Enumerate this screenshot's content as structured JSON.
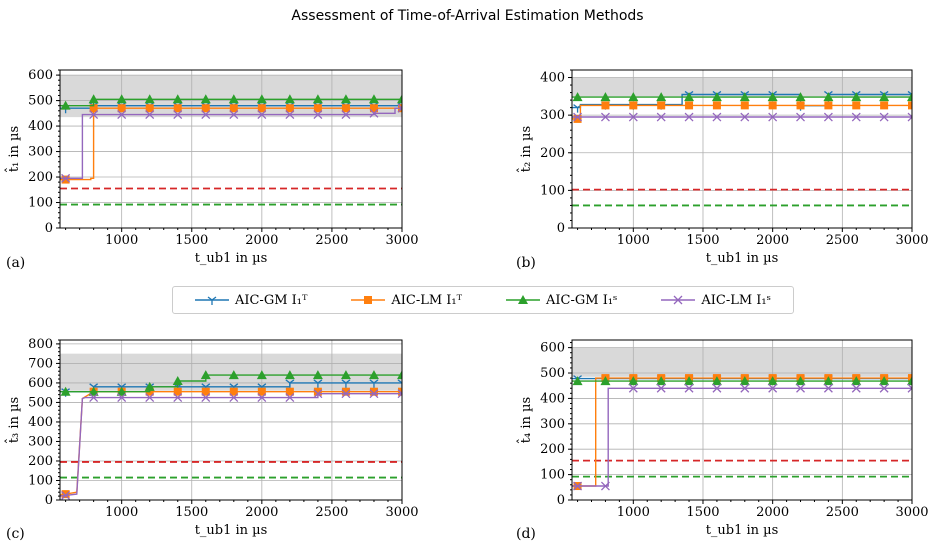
{
  "title": "Assessment of Time-of-Arrival Estimation Methods",
  "legend": [
    {
      "label": "AIC-GM I₁ᵀ",
      "color": "#1f77b4",
      "marker": "tri_down"
    },
    {
      "label": "AIC-LM I₁ᵀ",
      "color": "#ff7f0e",
      "marker": "square"
    },
    {
      "label": "AIC-GM I₁ˢ",
      "color": "#2ca02c",
      "marker": "triangle"
    },
    {
      "label": "AIC-LM I₁ˢ",
      "color": "#9467bd",
      "marker": "x"
    }
  ],
  "chart_data": [
    {
      "type": "line",
      "panel": "(a)",
      "xlabel": "t_ub1 in µs",
      "ylabel": "t̂₁ in µs",
      "xlim": [
        560,
        3000
      ],
      "ylim": [
        0,
        620
      ],
      "xticks": [
        1000,
        1500,
        2000,
        2500,
        3000
      ],
      "yticks": [
        0,
        100,
        200,
        300,
        400,
        500,
        600
      ],
      "shaded_band": [
        435,
        600
      ],
      "hlines": [
        {
          "y": 155,
          "color": "#d62728"
        },
        {
          "y": 92,
          "color": "#2ca02c"
        }
      ],
      "series": [
        {
          "name": "AIC-GM I₁ᵀ",
          "x": [
            560,
            800,
            800,
            3000
          ],
          "y": [
            470,
            470,
            480,
            480
          ]
        },
        {
          "name": "AIC-LM I₁ᵀ",
          "x": [
            560,
            780,
            780,
            800,
            800,
            3000
          ],
          "y": [
            190,
            190,
            195,
            195,
            470,
            470
          ]
        },
        {
          "name": "AIC-GM I₁ˢ",
          "x": [
            560,
            800,
            800,
            3000
          ],
          "y": [
            480,
            480,
            505,
            505
          ]
        },
        {
          "name": "AIC-LM I₁ˢ",
          "x": [
            560,
            720,
            720,
            2800,
            2800,
            2950,
            2950,
            3000
          ],
          "y": [
            195,
            195,
            445,
            445,
            450,
            450,
            470,
            470
          ]
        }
      ]
    },
    {
      "type": "line",
      "panel": "(b)",
      "xlabel": "t_ub1 in µs",
      "ylabel": "t̂₂ in µs",
      "xlim": [
        560,
        3000
      ],
      "ylim": [
        0,
        420
      ],
      "xticks": [
        1000,
        1500,
        2000,
        2500,
        3000
      ],
      "yticks": [
        0,
        100,
        200,
        300,
        400
      ],
      "shaded_band": [
        350,
        400
      ],
      "hlines": [
        {
          "y": 102,
          "color": "#d62728"
        },
        {
          "y": 60,
          "color": "#2ca02c"
        }
      ],
      "series": [
        {
          "name": "AIC-GM I₁ᵀ",
          "x": [
            560,
            620,
            620,
            1350,
            1350,
            2200,
            2200,
            2400,
            2400,
            3000
          ],
          "y": [
            320,
            320,
            328,
            328,
            355,
            355,
            325,
            325,
            355,
            355
          ]
        },
        {
          "name": "AIC-LM I₁ᵀ",
          "x": [
            560,
            620,
            620,
            3000
          ],
          "y": [
            290,
            290,
            326,
            326
          ]
        },
        {
          "name": "AIC-GM I₁ˢ",
          "x": [
            560,
            3000
          ],
          "y": [
            348,
            348
          ]
        },
        {
          "name": "AIC-LM I₁ˢ",
          "x": [
            560,
            3000
          ],
          "y": [
            295,
            295
          ]
        }
      ]
    },
    {
      "type": "line",
      "panel": "(c)",
      "xlabel": "t_ub1 in µs",
      "ylabel": "t̂₃ in µs",
      "xlim": [
        560,
        3000
      ],
      "ylim": [
        0,
        820
      ],
      "xticks": [
        1000,
        1500,
        2000,
        2500,
        3000
      ],
      "yticks": [
        0,
        100,
        200,
        300,
        400,
        500,
        600,
        700,
        800
      ],
      "shaded_band": [
        560,
        750
      ],
      "hlines": [
        {
          "y": 195,
          "color": "#d62728"
        },
        {
          "y": 115,
          "color": "#2ca02c"
        }
      ],
      "series": [
        {
          "name": "AIC-GM I₁ᵀ",
          "x": [
            560,
            800,
            800,
            2200,
            2200,
            3000
          ],
          "y": [
            555,
            555,
            580,
            580,
            600,
            600
          ]
        },
        {
          "name": "AIC-LM I₁ᵀ",
          "x": [
            560,
            680,
            720,
            800,
            3000
          ],
          "y": [
            25,
            40,
            520,
            555,
            555
          ]
        },
        {
          "name": "AIC-GM I₁ˢ",
          "x": [
            560,
            1200,
            1200,
            1400,
            1400,
            1600,
            1600,
            3000
          ],
          "y": [
            555,
            555,
            580,
            580,
            610,
            610,
            640,
            640
          ]
        },
        {
          "name": "AIC-LM I₁ˢ",
          "x": [
            560,
            680,
            720,
            740,
            800,
            2400,
            2400,
            3000
          ],
          "y": [
            20,
            30,
            520,
            525,
            525,
            525,
            545,
            545
          ]
        }
      ]
    },
    {
      "type": "line",
      "panel": "(d)",
      "xlabel": "t_ub1 in µs",
      "ylabel": "t̂₄ in µs",
      "xlim": [
        560,
        3000
      ],
      "ylim": [
        0,
        630
      ],
      "xticks": [
        1000,
        1500,
        2000,
        2500,
        3000
      ],
      "yticks": [
        0,
        100,
        200,
        300,
        400,
        500,
        600
      ],
      "shaded_band": [
        485,
        600
      ],
      "hlines": [
        {
          "y": 155,
          "color": "#d62728"
        },
        {
          "y": 92,
          "color": "#2ca02c"
        }
      ],
      "series": [
        {
          "name": "AIC-GM I₁ᵀ",
          "x": [
            560,
            3000
          ],
          "y": [
            478,
            478
          ]
        },
        {
          "name": "AIC-LM I₁ᵀ",
          "x": [
            560,
            730,
            730,
            3000
          ],
          "y": [
            55,
            55,
            480,
            480
          ]
        },
        {
          "name": "AIC-GM I₁ˢ",
          "x": [
            560,
            3000
          ],
          "y": [
            468,
            468
          ]
        },
        {
          "name": "AIC-LM I₁ˢ",
          "x": [
            560,
            820,
            820,
            3000
          ],
          "y": [
            55,
            55,
            440,
            440
          ]
        }
      ]
    }
  ]
}
